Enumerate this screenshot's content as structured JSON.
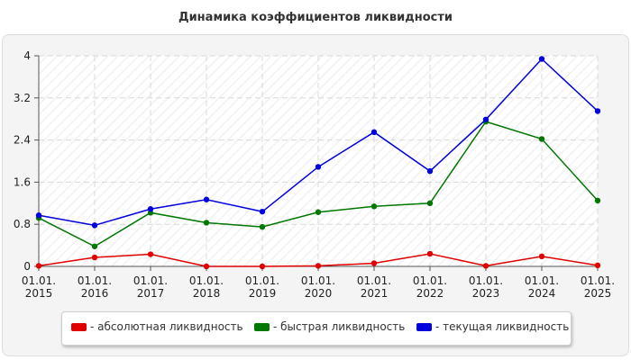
{
  "chart_data": {
    "type": "line",
    "title": "Динамика коэффициентов ликвидности",
    "categories": [
      [
        "01.01.",
        "2015"
      ],
      [
        "01.01.",
        "2016"
      ],
      [
        "01.01.",
        "2017"
      ],
      [
        "01.01.",
        "2018"
      ],
      [
        "01.01.",
        "2019"
      ],
      [
        "01.01.",
        "2020"
      ],
      [
        "01.01.",
        "2021"
      ],
      [
        "01.01.",
        "2022"
      ],
      [
        "01.01.",
        "2023"
      ],
      [
        "01.01.",
        "2024"
      ],
      [
        "01.01.",
        "2025"
      ]
    ],
    "ylim": [
      0,
      4
    ],
    "yticks": [
      "0",
      "0.8",
      "1.6",
      "2.4",
      "3.2",
      "4"
    ],
    "ytick_values": [
      0,
      0.8,
      1.6,
      2.4,
      3.2,
      4
    ],
    "grid": true,
    "legend_position": "bottom",
    "series": [
      {
        "name": "- абсолютная ликвидность",
        "color": "#e00000",
        "values": [
          0.01,
          0.17,
          0.23,
          0.0,
          0.0,
          0.01,
          0.06,
          0.24,
          0.01,
          0.19,
          0.02
        ]
      },
      {
        "name": "- быстрая ликвидность",
        "color": "#007700",
        "values": [
          0.92,
          0.38,
          1.02,
          0.83,
          0.75,
          1.03,
          1.14,
          1.2,
          2.75,
          2.42,
          1.25
        ]
      },
      {
        "name": "- текущая ликвидность",
        "color": "#0000dd",
        "values": [
          0.97,
          0.78,
          1.09,
          1.27,
          1.04,
          1.89,
          2.55,
          1.81,
          2.79,
          3.94,
          2.95
        ]
      }
    ]
  }
}
